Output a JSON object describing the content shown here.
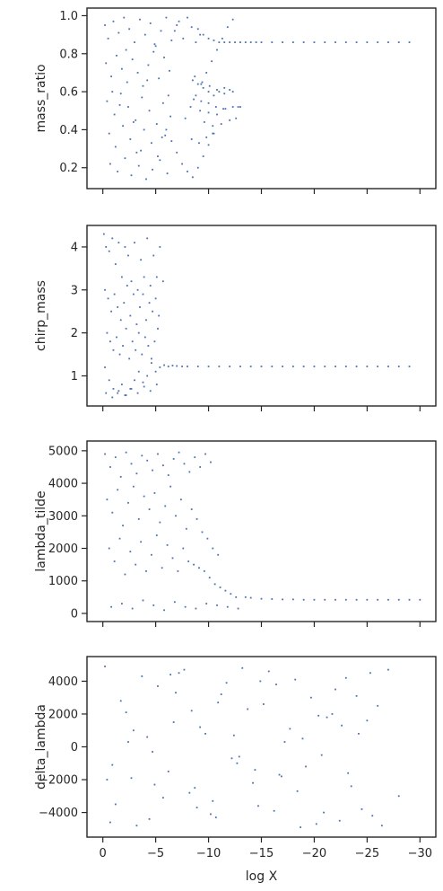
{
  "chart_data": [
    {
      "type": "scatter",
      "title": "",
      "xlabel": "",
      "ylabel": "mass_ratio",
      "xlim": [
        1.5,
        -31.5
      ],
      "ylim": [
        0.09,
        1.04
      ],
      "x_ticks": [
        0,
        -5,
        -10,
        -15,
        -20,
        -25,
        -30
      ],
      "x_tick_labels": [],
      "y_ticks": [
        0.2,
        0.4,
        0.6,
        0.8,
        1.0
      ],
      "y_tick_labels": [
        "0.2",
        "0.4",
        "0.6",
        "0.8",
        "1.0"
      ],
      "grid": false,
      "color": "#4c72b0",
      "series": [
        {
          "x": [
            -0.2,
            -0.5,
            -1.0,
            -1.5,
            -2.0,
            -2.5,
            -3.0,
            -3.5,
            -4.0,
            -4.5,
            -5.0,
            -5.5,
            -6.0,
            -6.5,
            -7.0,
            -0.3,
            -0.8,
            -1.3,
            -1.8,
            -2.3,
            -2.8,
            -3.3,
            -3.8,
            -4.3,
            -4.8,
            -5.3,
            -5.8,
            -6.3,
            -0.4,
            -1.1,
            -1.7,
            -2.4,
            -3.1,
            -3.7,
            -4.4,
            -5.1,
            -5.7,
            -6.4,
            -0.6,
            -1.2,
            -1.9,
            -2.6,
            -3.2,
            -3.9,
            -4.6,
            -5.2,
            -5.9,
            -0.7,
            -1.4,
            -2.1,
            -2.7,
            -3.4,
            -4.1,
            -4.7,
            -5.4,
            -6.1,
            -0.9,
            -1.6,
            -2.2,
            -2.9,
            -3.6,
            -4.2,
            -4.9,
            -5.6,
            -6.2,
            -6.8,
            -7.2,
            -7.6,
            -8.0,
            -8.4,
            -8.8,
            -9.2,
            -6.0,
            -6.5,
            -7.0,
            -7.5,
            -8.0,
            -8.5,
            -9.0,
            -9.5,
            -10.0,
            -10.5,
            -7.8,
            -8.3,
            -8.8,
            -9.3,
            -9.8,
            -10.3,
            -10.8,
            -11.3,
            -11.8,
            -12.3,
            -9.0,
            -9.5,
            -10.0,
            -10.5,
            -11.0,
            -11.5,
            -12.0,
            -12.5,
            -13.0,
            -13.5,
            -14.0,
            -14.5,
            -15.0,
            -16.0,
            -17.0,
            -18.0,
            -19.0,
            -20.0,
            -21.0,
            -22.0,
            -23.0,
            -24.0,
            -25.0,
            -26.0,
            -27.0,
            -28.0,
            -29.0,
            -8.5,
            -9.0,
            -9.5,
            -10.0,
            -10.5,
            -11.0,
            -11.5,
            -12.0,
            -12.3,
            -8.7,
            -9.4,
            -10.1,
            -10.8,
            -11.5,
            -8.6,
            -9.3,
            -10.0,
            -10.7,
            -11.4,
            -9.2,
            -10.0,
            -10.8,
            -11.6,
            -12.3,
            -12.8,
            -13.0,
            -9.6,
            -10.4,
            -11.2,
            -12.0,
            -12.6,
            -8.4,
            -9.1,
            -9.8,
            -10.4
          ],
          "y": [
            0.95,
            0.88,
            0.97,
            0.91,
            0.99,
            0.93,
            0.86,
            0.98,
            0.9,
            0.96,
            0.84,
            0.92,
            0.99,
            0.87,
            0.95,
            0.75,
            0.68,
            0.79,
            0.72,
            0.65,
            0.77,
            0.7,
            0.63,
            0.74,
            0.81,
            0.67,
            0.78,
            0.71,
            0.55,
            0.48,
            0.59,
            0.52,
            0.45,
            0.57,
            0.5,
            0.43,
            0.54,
            0.47,
            0.38,
            0.31,
            0.42,
            0.35,
            0.28,
            0.4,
            0.33,
            0.26,
            0.37,
            0.22,
            0.18,
            0.25,
            0.16,
            0.21,
            0.14,
            0.19,
            0.24,
            0.17,
            0.6,
            0.53,
            0.82,
            0.44,
            0.29,
            0.66,
            0.85,
            0.36,
            0.58,
            0.92,
            0.97,
            0.88,
            0.99,
            0.94,
            0.86,
            0.9,
            0.4,
            0.34,
            0.28,
            0.22,
            0.18,
            0.15,
            0.2,
            0.26,
            0.32,
            0.38,
            0.46,
            0.52,
            0.58,
            0.64,
            0.7,
            0.76,
            0.82,
            0.88,
            0.94,
            0.98,
            0.93,
            0.9,
            0.88,
            0.87,
            0.86,
            0.86,
            0.86,
            0.86,
            0.86,
            0.86,
            0.86,
            0.86,
            0.86,
            0.86,
            0.86,
            0.86,
            0.86,
            0.86,
            0.86,
            0.86,
            0.86,
            0.86,
            0.86,
            0.86,
            0.86,
            0.86,
            0.86,
            0.66,
            0.64,
            0.62,
            0.6,
            0.58,
            0.6,
            0.62,
            0.61,
            0.6,
            0.68,
            0.65,
            0.63,
            0.61,
            0.59,
            0.56,
            0.55,
            0.54,
            0.52,
            0.51,
            0.5,
            0.49,
            0.48,
            0.51,
            0.52,
            0.52,
            0.52,
            0.44,
            0.42,
            0.43,
            0.45,
            0.46,
            0.35,
            0.33,
            0.36,
            0.38
          ]
        }
      ]
    },
    {
      "type": "scatter",
      "title": "",
      "xlabel": "",
      "ylabel": "chirp_mass",
      "xlim": [
        1.5,
        -31.5
      ],
      "ylim": [
        0.3,
        4.5
      ],
      "x_ticks": [
        0,
        -5,
        -10,
        -15,
        -20,
        -25,
        -30
      ],
      "x_tick_labels": [],
      "y_ticks": [
        1,
        2,
        3,
        4
      ],
      "y_tick_labels": [
        "1",
        "2",
        "3",
        "4"
      ],
      "grid": false,
      "color": "#4c72b0",
      "series": [
        {
          "x": [
            -0.1,
            -0.3,
            -0.6,
            -0.9,
            -1.2,
            -1.5,
            -1.8,
            -2.1,
            -2.4,
            -2.7,
            -3.0,
            -3.3,
            -3.6,
            -3.9,
            -4.2,
            -4.5,
            -4.8,
            -5.1,
            -5.4,
            -5.7,
            -0.2,
            -0.5,
            -0.8,
            -1.1,
            -1.4,
            -1.7,
            -2.0,
            -2.3,
            -2.6,
            -2.9,
            -3.2,
            -3.5,
            -3.8,
            -4.1,
            -4.4,
            -4.7,
            -5.0,
            -5.3,
            -0.4,
            -0.7,
            -1.0,
            -1.3,
            -1.6,
            -1.9,
            -2.2,
            -2.5,
            -2.8,
            -3.1,
            -3.4,
            -3.7,
            -4.0,
            -4.3,
            -4.6,
            -4.9,
            -5.2,
            -0.2,
            -0.6,
            -1.0,
            -1.4,
            -1.8,
            -2.2,
            -2.6,
            -3.0,
            -3.4,
            -3.8,
            -4.2,
            -4.6,
            -5.0,
            -5.4,
            -5.8,
            -6.2,
            -6.6,
            -7.0,
            -7.5,
            -8.0,
            -9.0,
            -10.0,
            -11.0,
            -12.0,
            -13.0,
            -14.0,
            -15.0,
            -16.0,
            -17.0,
            -18.0,
            -19.0,
            -20.0,
            -21.0,
            -22.0,
            -23.0,
            -24.0,
            -25.0,
            -26.0,
            -27.0,
            -28.0,
            -29.0,
            -0.3,
            -0.9,
            -1.5,
            -2.1,
            -2.7,
            -3.3,
            -3.9,
            -4.5,
            -5.1
          ],
          "y": [
            4.3,
            4.0,
            3.9,
            4.2,
            3.6,
            4.1,
            3.3,
            4.0,
            3.8,
            3.2,
            4.1,
            3.0,
            3.7,
            3.3,
            4.2,
            3.1,
            3.8,
            3.3,
            4.0,
            3.2,
            3.0,
            2.8,
            2.5,
            2.9,
            2.6,
            2.3,
            2.7,
            3.1,
            2.4,
            2.9,
            2.2,
            2.6,
            2.9,
            2.3,
            2.7,
            2.5,
            2.8,
            2.4,
            2.0,
            1.8,
            1.6,
            1.9,
            1.5,
            1.7,
            2.1,
            1.4,
            1.8,
            1.6,
            2.0,
            1.5,
            1.9,
            1.7,
            1.4,
            1.8,
            2.1,
            1.2,
            0.9,
            0.7,
            0.6,
            0.8,
            0.55,
            0.7,
            0.9,
            1.1,
            0.85,
            1.0,
            1.3,
            1.1,
            1.2,
            1.25,
            1.22,
            1.24,
            1.23,
            1.22,
            1.22,
            1.22,
            1.22,
            1.22,
            1.22,
            1.22,
            1.22,
            1.22,
            1.22,
            1.22,
            1.22,
            1.22,
            1.22,
            1.22,
            1.22,
            1.22,
            1.22,
            1.22,
            1.22,
            1.22,
            1.22,
            1.22,
            0.6,
            0.5,
            0.65,
            0.55,
            0.7,
            0.6,
            0.75,
            0.65,
            0.8
          ]
        }
      ]
    },
    {
      "type": "scatter",
      "title": "",
      "xlabel": "",
      "ylabel": "lambda_tilde",
      "xlim": [
        1.5,
        -31.5
      ],
      "ylim": [
        -250,
        5300
      ],
      "x_ticks": [
        0,
        -5,
        -10,
        -15,
        -20,
        -25,
        -30
      ],
      "x_tick_labels": [],
      "y_ticks": [
        0,
        1000,
        2000,
        3000,
        4000,
        5000
      ],
      "y_tick_labels": [
        "0",
        "1000",
        "2000",
        "3000",
        "4000",
        "5000"
      ],
      "grid": false,
      "color": "#4c72b0",
      "series": [
        {
          "x": [
            -0.2,
            -0.7,
            -1.2,
            -1.7,
            -2.2,
            -2.7,
            -3.2,
            -3.7,
            -4.2,
            -4.7,
            -5.2,
            -5.7,
            -6.2,
            -6.7,
            -7.2,
            -7.7,
            -8.2,
            -8.7,
            -9.2,
            -9.7,
            -10.2,
            -0.4,
            -0.9,
            -1.4,
            -1.9,
            -2.4,
            -2.9,
            -3.4,
            -3.9,
            -4.4,
            -4.9,
            -5.4,
            -5.9,
            -6.4,
            -6.9,
            -7.4,
            -7.9,
            -8.4,
            -8.9,
            -9.4,
            -9.9,
            -10.4,
            -10.9,
            -0.6,
            -1.1,
            -1.6,
            -2.1,
            -2.6,
            -3.1,
            -3.6,
            -4.1,
            -4.6,
            -5.1,
            -5.6,
            -6.1,
            -6.6,
            -7.1,
            -7.6,
            -8.1,
            -8.6,
            -9.1,
            -9.6,
            -10.1,
            -10.6,
            -11.1,
            -11.6,
            -12.1,
            -12.6,
            -0.8,
            -1.8,
            -2.8,
            -3.8,
            -4.8,
            -5.8,
            -6.8,
            -7.8,
            -8.8,
            -9.8,
            -10.8,
            -11.8,
            -12.8,
            -13.5,
            -14.0,
            -15.0,
            -16.0,
            -17.0,
            -18.0,
            -19.0,
            -20.0,
            -21.0,
            -22.0,
            -23.0,
            -24.0,
            -25.0,
            -26.0,
            -27.0,
            -28.0,
            -29.0,
            -30.0
          ],
          "y": [
            4900,
            4500,
            4800,
            4200,
            4950,
            4600,
            4300,
            4850,
            4700,
            4400,
            4900,
            4550,
            4250,
            4750,
            4950,
            4600,
            4350,
            4800,
            4500,
            4900,
            4650,
            3500,
            3100,
            3800,
            2700,
            3400,
            3900,
            2900,
            3600,
            3200,
            3700,
            2800,
            3300,
            3900,
            3000,
            3500,
            2600,
            3200,
            2900,
            2500,
            2300,
            2000,
            1800,
            2000,
            1600,
            2300,
            1200,
            1900,
            1500,
            2200,
            1300,
            1800,
            2400,
            1400,
            2100,
            1700,
            1300,
            2000,
            1600,
            1500,
            1400,
            1300,
            1100,
            900,
            800,
            700,
            600,
            500,
            200,
            300,
            150,
            400,
            250,
            100,
            350,
            200,
            150,
            300,
            250,
            200,
            150,
            500,
            480,
            450,
            440,
            430,
            430,
            420,
            420,
            420,
            420,
            420,
            420,
            420,
            420,
            420,
            420,
            420,
            420
          ]
        }
      ]
    },
    {
      "type": "scatter",
      "title": "",
      "xlabel": "log X",
      "ylabel": "delta_lambda",
      "xlim": [
        1.5,
        -31.5
      ],
      "ylim": [
        -5500,
        5500
      ],
      "x_ticks": [
        0,
        -5,
        -10,
        -15,
        -20,
        -25,
        -30
      ],
      "x_tick_labels": [
        "0",
        "−5",
        "−10",
        "−15",
        "−20",
        "−25",
        "−30"
      ],
      "y_ticks": [
        -4000,
        -2000,
        0,
        2000,
        4000
      ],
      "y_tick_labels": [
        "−4000",
        "−2000",
        "0",
        "2000",
        "4000"
      ],
      "grid": false,
      "color": "#4c72b0",
      "series": [
        {
          "x": [
            -0.2,
            -1.2,
            -2.2,
            -3.2,
            -4.2,
            -5.2,
            -6.2,
            -7.2,
            -8.2,
            -9.2,
            -10.2,
            -11.2,
            -12.2,
            -13.2,
            -14.2,
            -15.2,
            -16.2,
            -17.2,
            -18.2,
            -19.2,
            -20.2,
            -21.2,
            -22.0,
            -0.7,
            -1.7,
            -2.7,
            -3.7,
            -4.7,
            -5.7,
            -6.7,
            -7.7,
            -8.7,
            -9.7,
            -10.7,
            -11.7,
            -12.7,
            -13.7,
            -14.7,
            -15.7,
            -16.7,
            -17.7,
            -18.7,
            -19.7,
            -20.7,
            -21.7,
            -0.4,
            -2.4,
            -4.4,
            -6.4,
            -8.4,
            -10.4,
            -12.4,
            -14.4,
            -16.4,
            -18.4,
            -20.4,
            -22.4,
            -23.0,
            -23.5,
            -24.0,
            -24.5,
            -25.0,
            -25.5,
            -26.0,
            -27.0,
            -28.0,
            -0.9,
            -2.9,
            -4.9,
            -6.9,
            -8.9,
            -10.9,
            -12.9,
            -14.9,
            -16.9,
            -18.9,
            -20.9,
            -22.6,
            -23.2,
            -24.2,
            -25.3,
            -26.4
          ],
          "y": [
            4900,
            -3500,
            2100,
            -4800,
            600,
            3700,
            -1500,
            4500,
            -2800,
            1200,
            -4100,
            3200,
            -700,
            4800,
            -2200,
            2600,
            -3900,
            300,
            4100,
            -1200,
            -4700,
            1800,
            3500,
            -4600,
            2800,
            -1900,
            4300,
            -300,
            -3100,
            1500,
            4700,
            -2500,
            800,
            -4300,
            3900,
            -1000,
            2300,
            -3600,
            4600,
            -1700,
            1100,
            -4900,
            3000,
            -500,
            2000,
            -2000,
            300,
            -4400,
            4400,
            2200,
            -3300,
            700,
            -1400,
            3800,
            -2700,
            1900,
            -4500,
            4200,
            -2400,
            3100,
            -3800,
            1600,
            -4200,
            2500,
            4700,
            -3000,
            -1100,
            1000,
            -2300,
            3300,
            -3700,
            2700,
            -600,
            4000,
            -1800,
            500,
            -4000,
            1300,
            -1600,
            800,
            4500,
            -4800
          ]
        }
      ]
    }
  ]
}
